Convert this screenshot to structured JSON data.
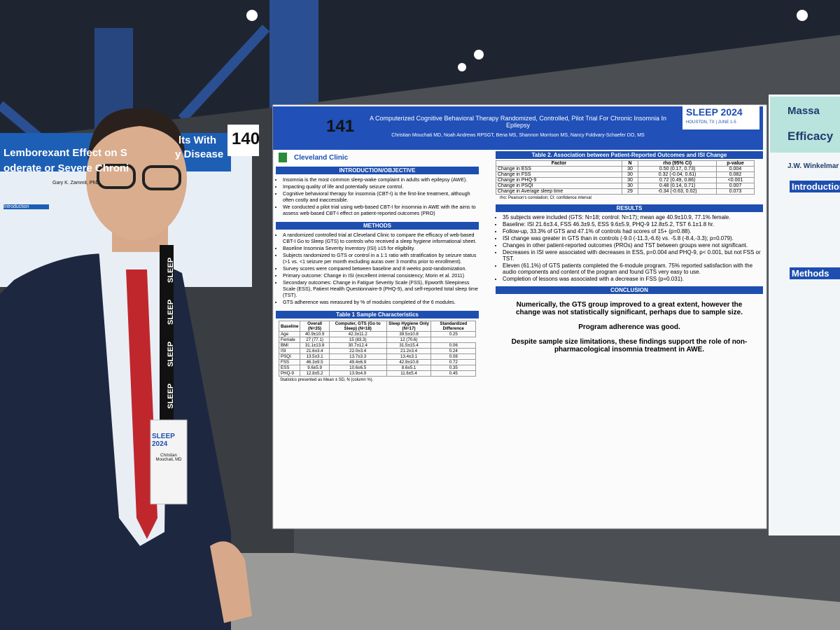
{
  "booth_numbers": [
    "140",
    "141"
  ],
  "left_poster": {
    "title_lines": [
      "Lemborexant Effect on S",
      "lts With",
      "oderate or Severe Chroni",
      "y Disease"
    ],
    "author": "Gary K. Zammit, PhD",
    "section": "Introduction"
  },
  "right_poster": {
    "lines": [
      "Massa",
      "Efficacy",
      "J.W. Winkelmar"
    ],
    "sections": [
      "Introduction",
      "Methods"
    ]
  },
  "badge": {
    "event": "SLEEP 2024",
    "name": "Christian Mouchati, MD",
    "lanyard": "SLEEP"
  },
  "poster": {
    "institution": "Cleveland Clinic",
    "event_badge": "SLEEP 2024",
    "event_place": "HOUSTON, TX | JUNE 1-5",
    "title": "A Computerized Cognitive Behavioral Therapy Randomized, Controlled, Pilot Trial For Chronic Insomnia In Epilepsy",
    "authors": "Christian Mouchati MD, Noah Andrews RPSGT, Bena MS, Shannon Morrison MS, Nancy Foldvary-Schaefer DO, MS",
    "introduction": {
      "heading": "INTRODUCTION/OBJECTIVE",
      "bullets": [
        "Insomnia is the most common sleep-wake complaint in adults with epilepsy (AWE).",
        "Impacting quality of life and potentially seizure control.",
        "Cognitive behavioral therapy for insomnia (CBT-I) is the first-line treatment, although often costly and inaccessible.",
        "We conducted a pilot trial using web-based CBT-I for insomnia in AWE with the aims to assess web-based CBT-I effect on patient-reported outcomes (PRO)"
      ]
    },
    "methods": {
      "heading": "METHODS",
      "bullets": [
        "A randomized controlled trial at Cleveland Clinic to compare the efficacy of web-based CBT-I Go to Sleep (GTS) to controls who received a sleep hygiene informational sheet.",
        "Baseline Insomnia Severity Inventory (ISI) ≥15 for eligibility.",
        "Subjects randomized to GTS or control in a 1:1 ratio with stratification by seizure status (>1 vs. <1 seizure per month excluding auras over 3 months prior to enrollment).",
        "Survey scores were compared between baseline and 8 weeks post-randomization.",
        "Primary outcome: Change in ISI (excellent internal consistency; Morin et al. 2011)",
        "Secondary outcomes: Change in Fatigue Severity Scale (FSS), Epworth Sleepiness Scale (ESS), Patient Health Questionnaire-9 (PHQ-9), and self-reported total sleep time (TST).",
        "GTS adherence was measured by % of modules completed of the 6 modules."
      ]
    },
    "table1": {
      "heading": "Table 1 Sample Characteristics",
      "columns": [
        "Baseline",
        "Overall (N=35)",
        "Computer, GTS (Go to Sleep) (N=18)",
        "Sleep Hygiene Only (N=17)",
        "Standardized Difference"
      ],
      "rows": [
        [
          "Age",
          "40.9±10.9",
          "42.3±11.2",
          "39.5±10.8",
          "0.25"
        ],
        [
          "Female",
          "27 (77.1)",
          "15 (83.3)",
          "12 (70.6)"
        ],
        [
          "BMI",
          "31.1±13.8",
          "30.7±12.4",
          "31.5±15.4",
          "0.06"
        ],
        [
          "ISI",
          "21.6±3.4",
          "22.0±3.4",
          "21.2±3.4",
          "0.24"
        ],
        [
          "PSQI",
          "13.5±3.1",
          "13.7±3.3",
          "13.4±3.1",
          "0.08"
        ],
        [
          "FSS",
          "46.3±9.5",
          "49.4±6.9",
          "42.9±10.8",
          "0.72"
        ],
        [
          "ESS",
          "9.6±5.9",
          "10.6±6.5",
          "8.6±5.1",
          "0.35"
        ],
        [
          "PHQ-9",
          "12.8±5.2",
          "13.9±4.9",
          "11.6±5.4",
          "0.45"
        ]
      ],
      "note": "Statistics presented as Mean ± SD, N (column %)."
    },
    "table2": {
      "heading": "Table 2. Association between Patient-Reported Outcomes and ISI Change",
      "columns": [
        "Factor",
        "N",
        "rho (95% CI)",
        "p-value"
      ],
      "rows": [
        [
          "Change in ESS",
          "30",
          "0.50 (0.17, 0.73)",
          "0.004"
        ],
        [
          "Change in FSS",
          "30",
          "0.32 (-0.04, 0.61)",
          "0.082"
        ],
        [
          "Change in PHQ-9",
          "30",
          "0.72 (0.49, 0.86)",
          "<0.001"
        ],
        [
          "Change in PSQI",
          "30",
          "0.48 (0.14, 0.71)",
          "0.007"
        ],
        [
          "Change in Average sleep time",
          "29",
          "-0.34 (-0.63, 0.02)",
          "0.073"
        ]
      ],
      "note": "rho: Pearson's correlation; CI: confidence interval"
    },
    "results": {
      "heading": "RESULTS",
      "bullets": [
        "35 subjects were included (GTS: N=18; control: N=17); mean age 40.9±10.9, 77.1% female.",
        "Baseline: ISI 21.6±3.4, FSS 46.3±9.5, ESS 9.6±5.9, PHQ-9 12.8±5.2, TST 6.1±1.8 hr.",
        "Follow-up, 33.3% of GTS and 47.1% of controls had scores of 15+ (p=0.88).",
        "ISI change was greater in GTS than in controls (-9.0 (-11.3,-6.6) vs. -5.8 (-8.4,-3.3); p=0.079).",
        "Changes in other patient-reported outcomes (PROs) and TST between groups were not significant.",
        "Decreases in ISI were associated with decreases in ESS, p=0.004 and PHQ-9, p< 0.001, but not FSS or TST.",
        "Eleven (61.1%) of GTS patients completed the 6-module program. 75% reported satisfaction with the audio components and content of the program and found GTS very easy to use.",
        "Completion of lessons was associated with a decrease in FSS (p=0.031)."
      ]
    },
    "conclusion": {
      "heading": "CONCLUSION",
      "paragraphs": [
        "Numerically, the GTS group improved to a great extent, however the change was not statistically significant, perhaps due to sample size.",
        "Program adherence was good.",
        "Despite sample size limitations, these findings support the role of non-pharmacological insomnia treatment in AWE."
      ]
    }
  }
}
